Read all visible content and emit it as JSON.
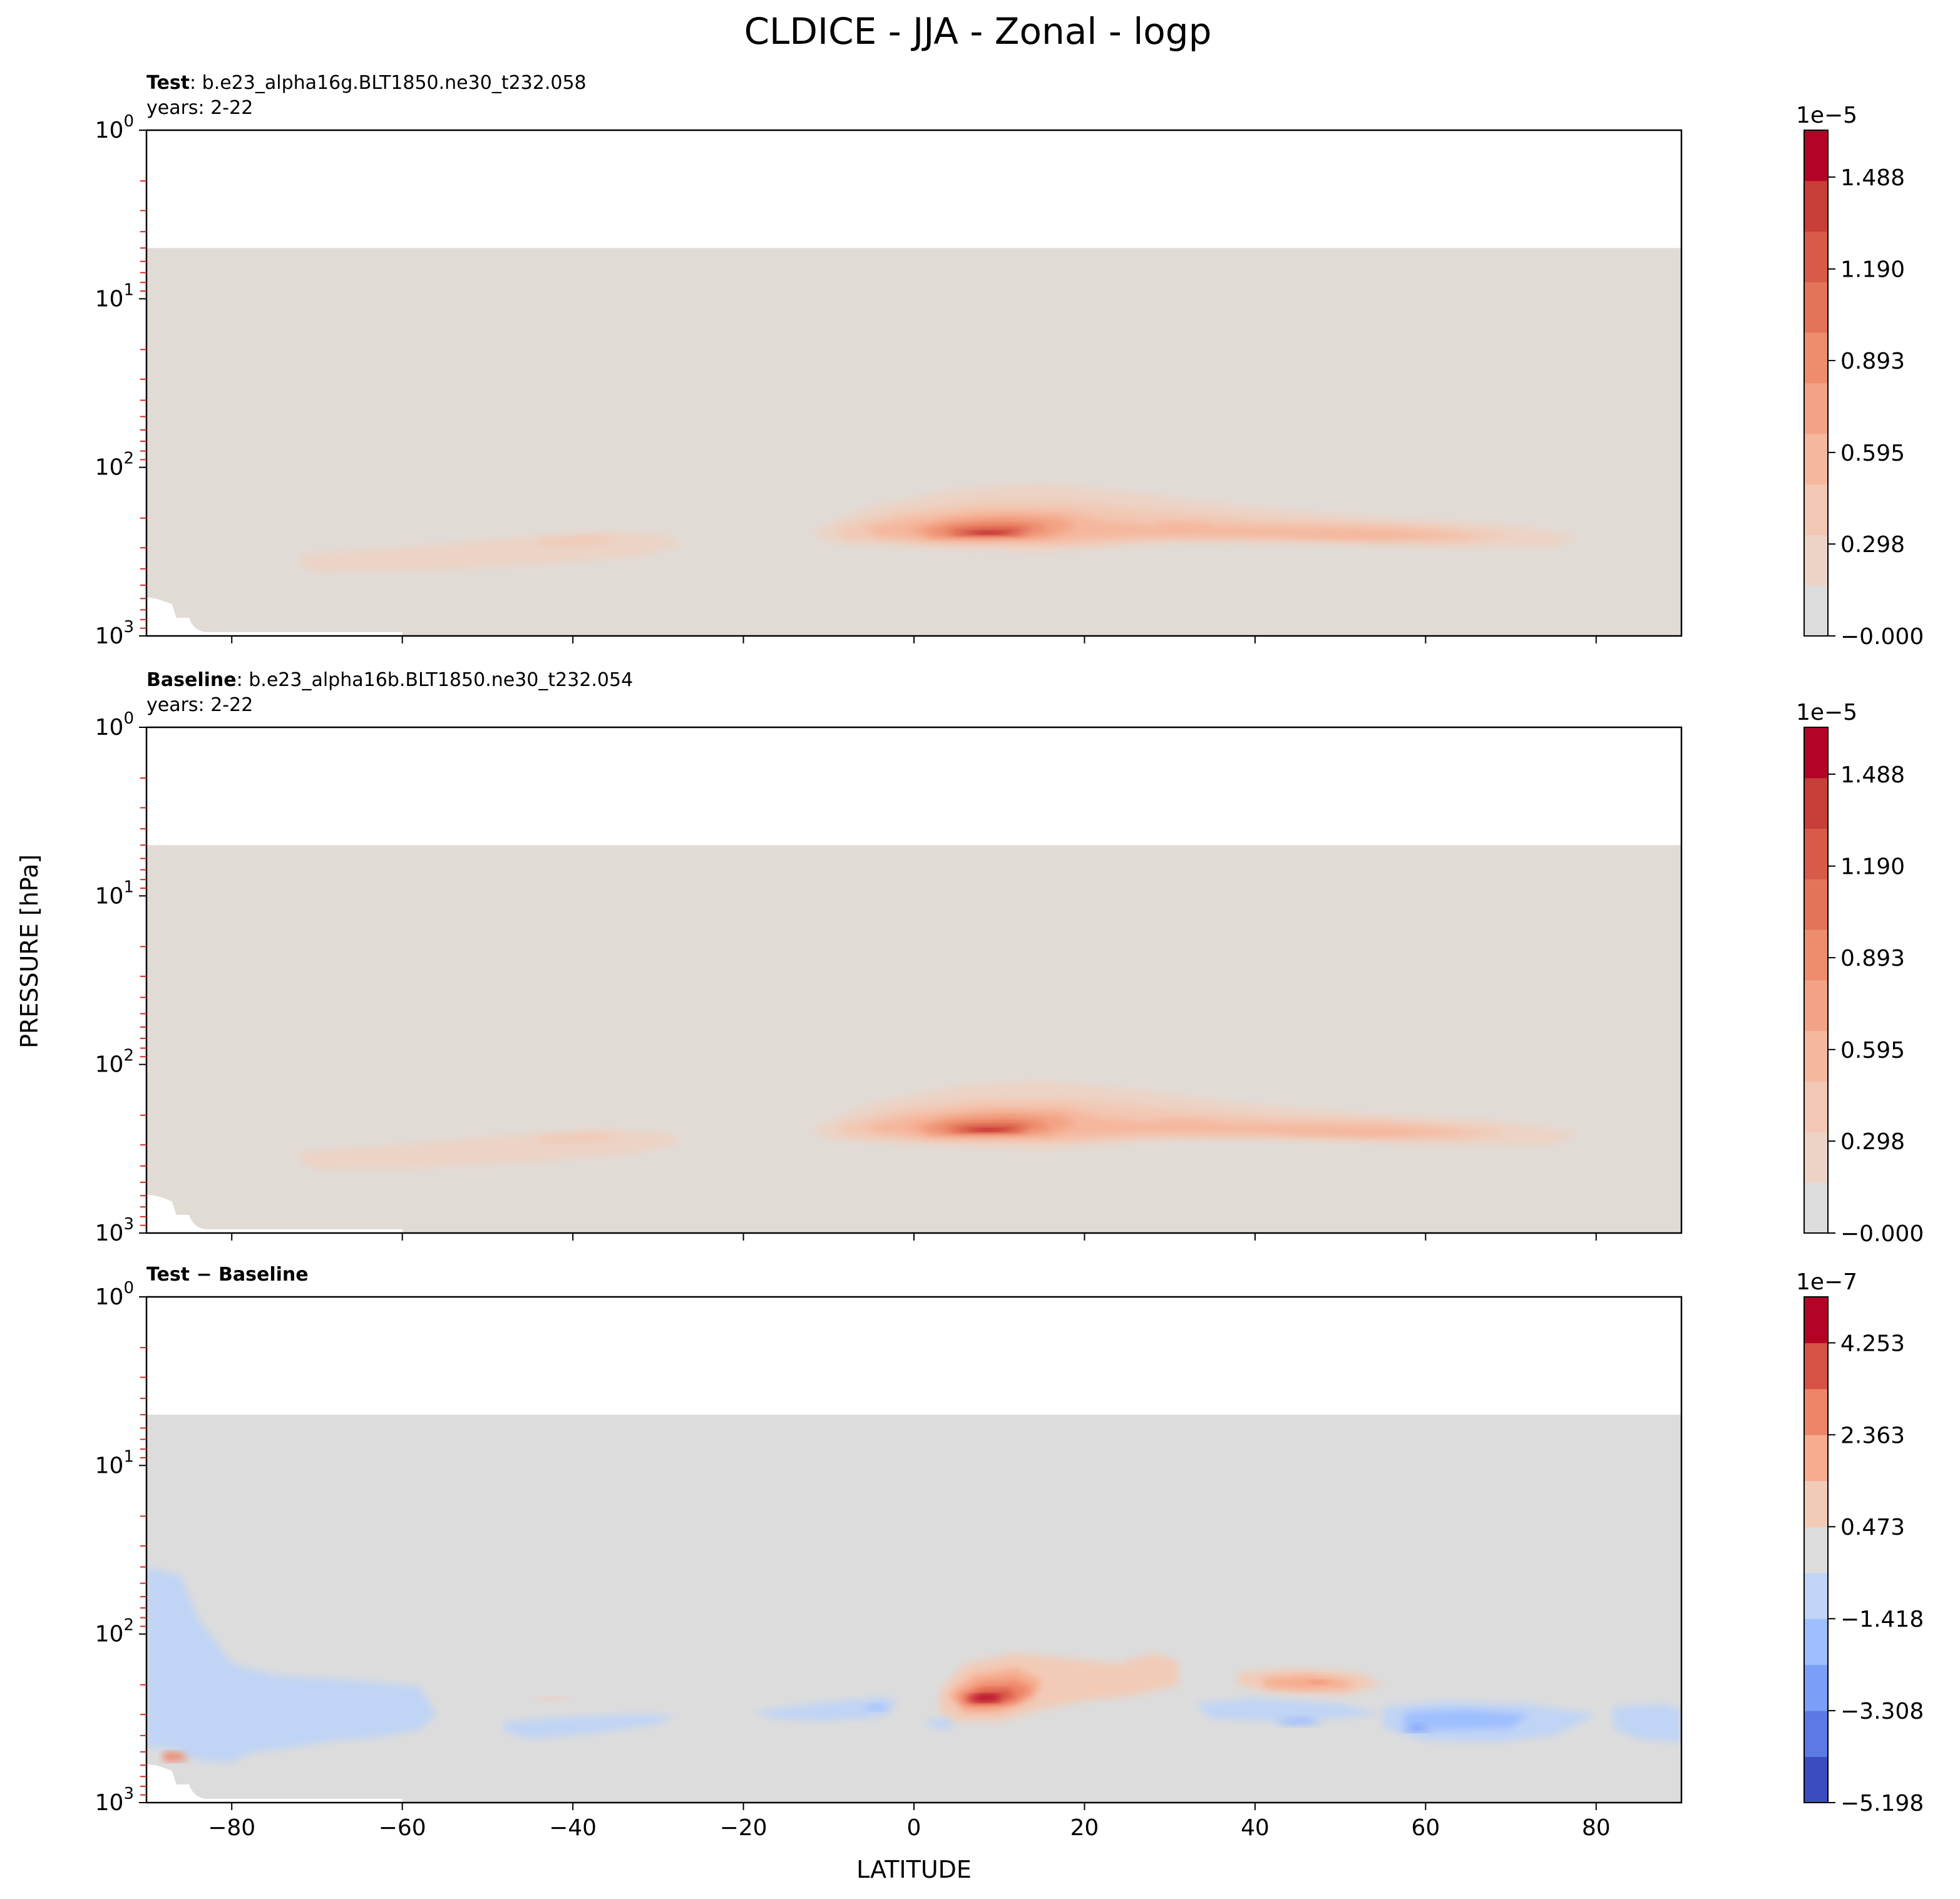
{
  "figure": {
    "title": "CLDICE - JJA - Zonal - logp",
    "ylabel": "PRESSURE [hPa]",
    "xlabel": "LATITUDE"
  },
  "x_ticks": [
    -80,
    -60,
    -40,
    -20,
    0,
    20,
    40,
    60,
    80
  ],
  "x_tick_labels": [
    "−80",
    "−60",
    "−40",
    "−20",
    "0",
    "20",
    "40",
    "60",
    "80"
  ],
  "y_ticks": [
    1,
    10,
    100,
    1000
  ],
  "colors": {
    "background_fill_sequential": "#e1dbd6",
    "background_fill_difference": "#dcdcdc",
    "tick_marks_red": "#d62728"
  },
  "panels": [
    {
      "id": "test",
      "label_bold": "Test",
      "label_rest": ": b.e23_alpha16g.BLT1850.ne30_t232.058",
      "years": "years: 2-22",
      "colorbar": {
        "exponent": "1e−5",
        "tick_labels": [
          "1.488",
          "1.190",
          "0.893",
          "0.595",
          "0.298",
          "−0.000"
        ],
        "tick_values": [
          1.488,
          1.19,
          0.893,
          0.595,
          0.298,
          0.0
        ],
        "range": [
          0.0,
          1.64
        ],
        "colors": [
          "#dddcdc",
          "#ecd3c5",
          "#f2c8b4",
          "#f5b79d",
          "#f3a385",
          "#ee8d6e",
          "#e47459",
          "#d85a48",
          "#c83e38",
          "#b40426"
        ]
      }
    },
    {
      "id": "baseline",
      "label_bold": "Baseline",
      "label_rest": ": b.e23_alpha16b.BLT1850.ne30_t232.054",
      "years": "years: 2-22",
      "colorbar": {
        "exponent": "1e−5",
        "tick_labels": [
          "1.488",
          "1.190",
          "0.893",
          "0.595",
          "0.298",
          "−0.000"
        ],
        "tick_values": [
          1.488,
          1.19,
          0.893,
          0.595,
          0.298,
          0.0
        ],
        "range": [
          0.0,
          1.64
        ],
        "colors": [
          "#dddcdc",
          "#ecd3c5",
          "#f2c8b4",
          "#f5b79d",
          "#f3a385",
          "#ee8d6e",
          "#e47459",
          "#d85a48",
          "#c83e38",
          "#b40426"
        ]
      }
    },
    {
      "id": "diff",
      "label_bold": "Test − Baseline",
      "label_rest": "",
      "years": "",
      "colorbar": {
        "exponent": "1e−7",
        "tick_labels": [
          "4.253",
          "2.363",
          "0.473",
          "−1.418",
          "−3.308",
          "−5.198"
        ],
        "tick_values": [
          4.253,
          2.363,
          0.473,
          -1.418,
          -3.308,
          -5.198
        ],
        "range": [
          -5.198,
          5.198
        ],
        "colors": [
          "#3b4cc0",
          "#5b7ae5",
          "#7b9ff9",
          "#9ebeff",
          "#c0d4f5",
          "#dcdcdc",
          "#f2cbb7",
          "#f7ac8e",
          "#ee8468",
          "#d65244",
          "#b40426"
        ]
      }
    }
  ],
  "chart_data": [
    {
      "type": "heatmap",
      "panel": "test",
      "x_range": [
        -90,
        90
      ],
      "ylim": [
        1000,
        1
      ],
      "y_scale": "log",
      "grid": false,
      "features": [
        {
          "name": "tropical_max",
          "lat": 8,
          "p": 250,
          "value": 1.6e-05
        },
        {
          "name": "northern_band",
          "lat_range": [
            -12,
            78
          ],
          "p_range": [
            120,
            450
          ],
          "value": 4e-06
        },
        {
          "name": "southern_band",
          "lat_range": [
            -70,
            -27
          ],
          "p_range": [
            230,
            500
          ],
          "value": 3e-06
        }
      ],
      "undefined_region": {
        "p_max": 5
      }
    },
    {
      "type": "heatmap",
      "panel": "baseline",
      "x_range": [
        -90,
        90
      ],
      "ylim": [
        1000,
        1
      ],
      "y_scale": "log",
      "grid": false,
      "features": [
        {
          "name": "tropical_max",
          "lat": 8,
          "p": 250,
          "value": 1.6e-05
        },
        {
          "name": "northern_band",
          "lat_range": [
            -12,
            78
          ],
          "p_range": [
            120,
            450
          ],
          "value": 4e-06
        },
        {
          "name": "southern_band",
          "lat_range": [
            -72,
            -27
          ],
          "p_range": [
            230,
            520
          ],
          "value": 3e-06
        }
      ],
      "undefined_region": {
        "p_max": 5
      }
    },
    {
      "type": "heatmap",
      "panel": "diff",
      "x_range": [
        -90,
        90
      ],
      "ylim": [
        1000,
        1
      ],
      "y_scale": "log",
      "grid": false,
      "features": [
        {
          "name": "positive_max",
          "lat": 8,
          "p": 240,
          "value": 4.8e-07
        },
        {
          "name": "positive_nh_mid",
          "lat_range": [
            44,
            52
          ],
          "p_range": [
            160,
            250
          ],
          "value": 2.4e-07
        },
        {
          "name": "negative_sh_high",
          "lat_range": [
            -90,
            -60
          ],
          "p_range": [
            60,
            700
          ],
          "value": -1.4e-07
        },
        {
          "name": "negative_nh_high",
          "lat_range": [
            55,
            90
          ],
          "p_range": [
            200,
            700
          ],
          "value": -3.3e-07
        }
      ],
      "undefined_region": {
        "p_max": 5
      }
    }
  ]
}
